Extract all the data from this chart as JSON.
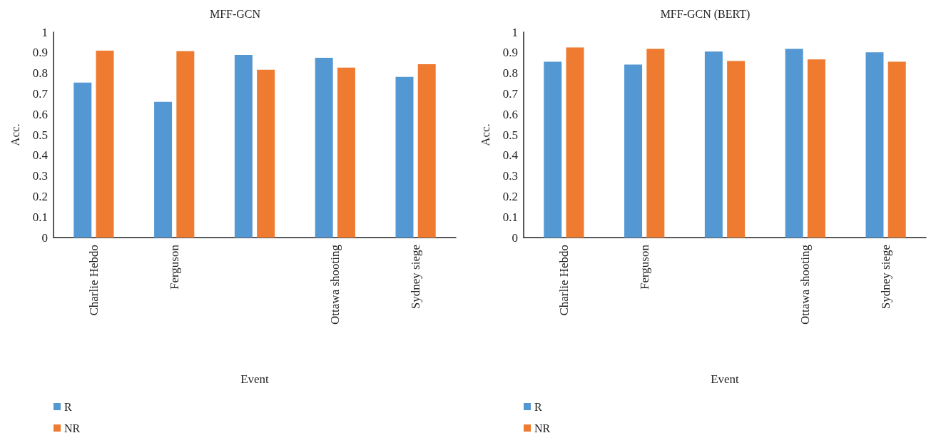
{
  "chart_data": [
    {
      "type": "bar",
      "title": "MFF-GCN",
      "xlabel": "Event",
      "ylabel": "Acc.",
      "categories": [
        "Charlie Hebdo",
        "Ferguson",
        null,
        "Ottawa shooting",
        "Sydney siege"
      ],
      "series": [
        {
          "name": "R",
          "color": "#5498d3",
          "values": [
            0.754,
            0.661,
            0.889,
            0.875,
            0.782
          ]
        },
        {
          "name": "NR",
          "color": "#ee7b30",
          "values": [
            0.91,
            0.907,
            0.817,
            0.827,
            0.844
          ]
        }
      ],
      "ylim": [
        0,
        1
      ],
      "yticks": [
        0,
        0.1,
        0.2,
        0.3,
        0.4,
        0.5,
        0.6,
        0.7,
        0.8,
        0.9,
        1
      ],
      "grid": false,
      "legend": "bottom left"
    },
    {
      "type": "bar",
      "title": "MFF-GCN (BERT)",
      "xlabel": "Event",
      "ylabel": "Acc.",
      "categories": [
        "Charlie Hebdo",
        "Ferguson",
        null,
        "Ottawa shooting",
        "Sydney siege"
      ],
      "series": [
        {
          "name": "R",
          "color": "#5498d3",
          "values": [
            0.856,
            0.842,
            0.905,
            0.918,
            0.902
          ]
        },
        {
          "name": "NR",
          "color": "#ee7b30",
          "values": [
            0.925,
            0.918,
            0.859,
            0.867,
            0.856
          ]
        }
      ],
      "ylim": [
        0,
        1
      ],
      "yticks": [
        0,
        0.1,
        0.2,
        0.3,
        0.4,
        0.5,
        0.6,
        0.7,
        0.8,
        0.9,
        1
      ],
      "grid": false,
      "legend": "bottom left"
    }
  ]
}
